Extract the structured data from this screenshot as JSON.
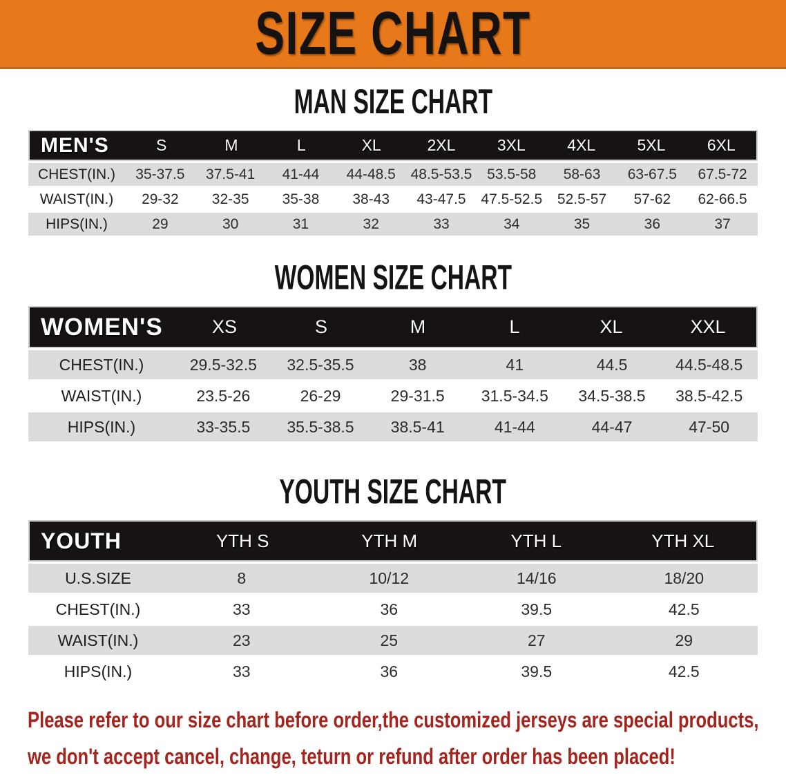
{
  "banner": {
    "title": "SIZE CHART",
    "bg_color": "#E8791B"
  },
  "sections": [
    {
      "title": "MAN SIZE CHART",
      "table": {
        "header_label": "MEN'S",
        "columns": [
          "S",
          "M",
          "L",
          "XL",
          "2XL",
          "3XL",
          "4XL",
          "5XL",
          "6XL"
        ],
        "rows": [
          {
            "label": "CHEST(IN.)",
            "values": [
              "35-37.5",
              "37.5-41",
              "41-44",
              "44-48.5",
              "48.5-53.5",
              "53.5-58",
              "58-63",
              "63-67.5",
              "67.5-72"
            ]
          },
          {
            "label": "WAIST(IN.)",
            "values": [
              "29-32",
              "32-35",
              "35-38",
              "38-43",
              "43-47.5",
              "47.5-52.5",
              "52.5-57",
              "57-62",
              "62-66.5"
            ]
          },
          {
            "label": "HIPS(IN.)",
            "values": [
              "29",
              "30",
              "31",
              "32",
              "33",
              "34",
              "35",
              "36",
              "37"
            ]
          }
        ]
      }
    },
    {
      "title": "WOMEN SIZE CHART",
      "table": {
        "header_label": "WOMEN'S",
        "columns": [
          "XS",
          "S",
          "M",
          "L",
          "XL",
          "XXL"
        ],
        "rows": [
          {
            "label": "CHEST(IN.)",
            "values": [
              "29.5-32.5",
              "32.5-35.5",
              "38",
              "41",
              "44.5",
              "44.5-48.5"
            ]
          },
          {
            "label": "WAIST(IN.)",
            "values": [
              "23.5-26",
              "26-29",
              "29-31.5",
              "31.5-34.5",
              "34.5-38.5",
              "38.5-42.5"
            ]
          },
          {
            "label": "HIPS(IN.)",
            "values": [
              "33-35.5",
              "35.5-38.5",
              "38.5-41",
              "41-44",
              "44-47",
              "47-50"
            ]
          }
        ]
      }
    },
    {
      "title": "YOUTH SIZE CHART",
      "table": {
        "header_label": "YOUTH",
        "columns": [
          "YTH S",
          "YTH M",
          "YTH L",
          "YTH XL"
        ],
        "rows": [
          {
            "label": "U.S.SIZE",
            "values": [
              "8",
              "10/12",
              "14/16",
              "18/20"
            ]
          },
          {
            "label": "CHEST(IN.)",
            "values": [
              "33",
              "36",
              "39.5",
              "42.5"
            ]
          },
          {
            "label": "WAIST(IN.)",
            "values": [
              "23",
              "25",
              "27",
              "29"
            ]
          },
          {
            "label": "HIPS(IN.)",
            "values": [
              "33",
              "36",
              "39.5",
              "42.5"
            ]
          }
        ]
      }
    }
  ],
  "footer": {
    "line1": "Please refer to our size chart before order,the customized jerseys are special products,",
    "line2": "we don't accept cancel, change, teturn or refund after order has been placed!",
    "text_color": "#A3251E"
  },
  "colors": {
    "banner_orange": "#E8791B",
    "header_black": "#171312",
    "row_gray": "#DCDCDC",
    "disclaimer_red": "#A3251E"
  }
}
